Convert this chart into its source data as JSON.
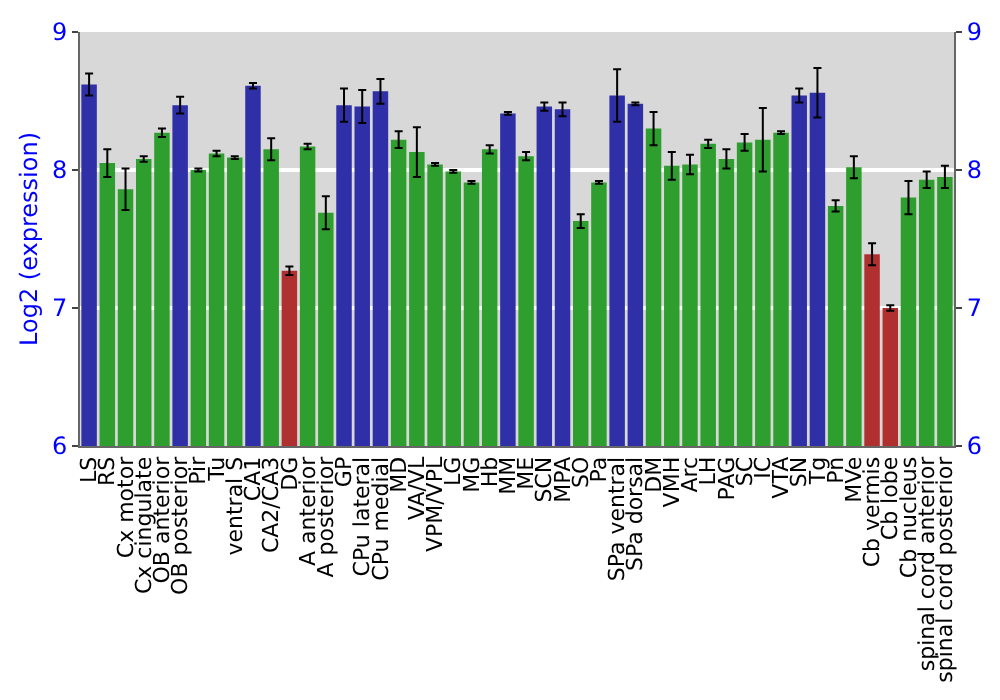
{
  "chart_data": {
    "type": "bar",
    "ylabel": "Log2 (expression)",
    "categories": [
      "LS",
      "RS",
      "Cx motor",
      "Cx cingulate",
      "OB anterior",
      "OB posterior",
      "Pir",
      "Tu",
      "ventral S",
      "CA1",
      "CA2/CA3",
      "DG",
      "A anterior",
      "A posterior",
      "GP",
      "CPu lateral",
      "CPu medial",
      "MD",
      "VA/VL",
      "VPM/VPL",
      "LG",
      "MG",
      "Hb",
      "MM",
      "ME",
      "SCN",
      "MPA",
      "SO",
      "Pa",
      "SPa ventral",
      "SPa dorsal",
      "DM",
      "VMH",
      "Arc",
      "LH",
      "PAG",
      "SC",
      "IC",
      "VTA",
      "SN",
      "Tg",
      "Pn",
      "MVe",
      "Cb vermis",
      "Cb lobe",
      "Cb nucleus",
      "spinal cord anterior",
      "spinal cord posterior"
    ],
    "values": [
      8.62,
      8.05,
      7.86,
      8.08,
      8.27,
      8.47,
      8.0,
      8.12,
      8.09,
      8.61,
      8.15,
      7.27,
      8.17,
      7.69,
      8.47,
      8.46,
      8.57,
      8.22,
      8.13,
      8.04,
      7.99,
      7.91,
      8.15,
      8.41,
      8.1,
      8.46,
      8.44,
      7.63,
      7.91,
      8.54,
      8.48,
      8.3,
      8.03,
      8.04,
      8.19,
      8.08,
      8.2,
      8.22,
      8.27,
      8.54,
      8.56,
      7.74,
      8.02,
      7.39,
      7.0,
      7.8,
      7.93,
      7.95
    ],
    "errors": [
      0.08,
      0.1,
      0.15,
      0.02,
      0.03,
      0.06,
      0.01,
      0.02,
      0.01,
      0.02,
      0.08,
      0.03,
      0.02,
      0.12,
      0.12,
      0.12,
      0.09,
      0.06,
      0.18,
      0.01,
      0.01,
      0.01,
      0.03,
      0.01,
      0.03,
      0.03,
      0.05,
      0.05,
      0.01,
      0.19,
      0.01,
      0.12,
      0.1,
      0.07,
      0.03,
      0.07,
      0.06,
      0.23,
      0.01,
      0.05,
      0.18,
      0.04,
      0.08,
      0.08,
      0.02,
      0.12,
      0.06,
      0.08
    ],
    "colors": [
      "#2f2fa8",
      "#2e9e2e",
      "#2e9e2e",
      "#2e9e2e",
      "#2e9e2e",
      "#2f2fa8",
      "#2e9e2e",
      "#2e9e2e",
      "#2e9e2e",
      "#2f2fa8",
      "#2e9e2e",
      "#b03030",
      "#2e9e2e",
      "#2e9e2e",
      "#2f2fa8",
      "#2f2fa8",
      "#2f2fa8",
      "#2e9e2e",
      "#2e9e2e",
      "#2e9e2e",
      "#2e9e2e",
      "#2e9e2e",
      "#2e9e2e",
      "#2f2fa8",
      "#2e9e2e",
      "#2f2fa8",
      "#2f2fa8",
      "#2e9e2e",
      "#2e9e2e",
      "#2f2fa8",
      "#2f2fa8",
      "#2e9e2e",
      "#2e9e2e",
      "#2e9e2e",
      "#2e9e2e",
      "#2e9e2e",
      "#2e9e2e",
      "#2e9e2e",
      "#2e9e2e",
      "#2f2fa8",
      "#2f2fa8",
      "#2e9e2e",
      "#2e9e2e",
      "#b03030",
      "#b03030",
      "#2e9e2e",
      "#2e9e2e",
      "#2e9e2e"
    ],
    "ylim": [
      6,
      9
    ],
    "yticks": [
      6,
      7,
      8,
      9
    ],
    "y2lim": [
      6,
      9
    ],
    "y2ticks": [
      6,
      7,
      8,
      9
    ],
    "grid": "y"
  }
}
